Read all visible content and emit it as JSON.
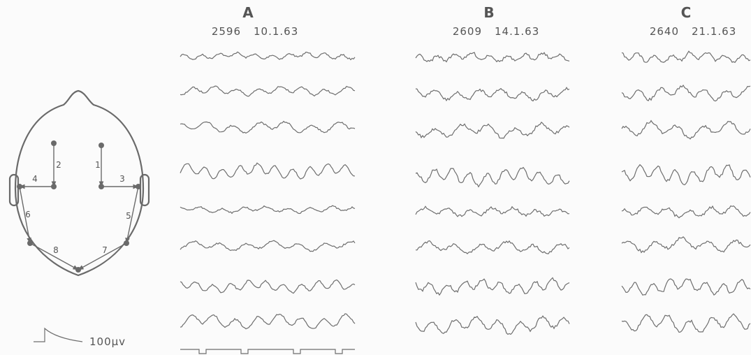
{
  "panels": [
    {
      "label": "A",
      "record": "2596",
      "date": "10.1.63"
    },
    {
      "label": "B",
      "record": "2609",
      "date": "14.1.63"
    },
    {
      "label": "C",
      "record": "2640",
      "date": "21.1.63"
    }
  ],
  "electrodes": [
    "1",
    "2",
    "3",
    "4",
    "5",
    "6",
    "7",
    "8"
  ],
  "calibration": "100μv"
}
